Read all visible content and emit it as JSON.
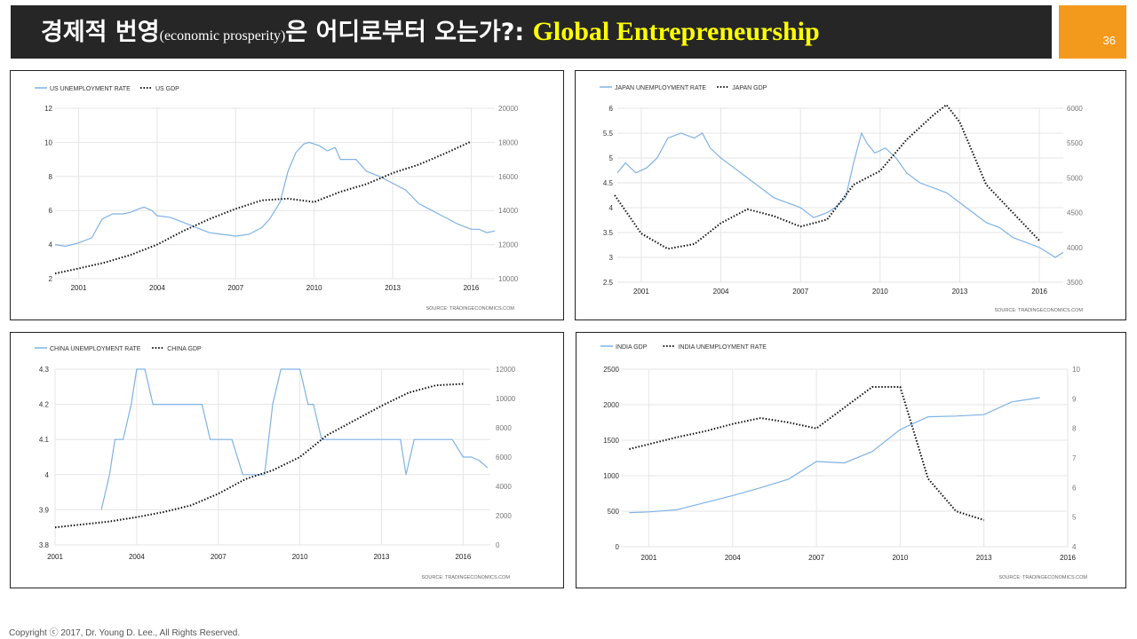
{
  "header": {
    "title_ko": "경제적 번영",
    "title_paren": "(economic prosperity)",
    "title_ko2": "은 어디로부터 오는가?",
    "title_sep": ": ",
    "title_en": "Global Entrepreneurship",
    "page_number": "36"
  },
  "footer": {
    "copyright": "Copyright ⓒ 2017, Dr. Young D. Lee., All Rights Reserved."
  },
  "colors": {
    "blue_series": "#7fb2e5",
    "black_series": "#111111",
    "title_bg": "#262626",
    "accent": "#f39a1c",
    "title_en": "#ffff00"
  },
  "chart_data": [
    {
      "type": "line",
      "source": "SOURCE: TRADINGECONOMICS.COM",
      "legend": [
        "US UNEMPLOYMENT RATE",
        "US GDP"
      ],
      "x_ticks": [
        "2001",
        "2004",
        "2007",
        "2010",
        "2013",
        "2016"
      ],
      "xlim": [
        2000.1,
        2016.9
      ],
      "left_axis": {
        "min": 2,
        "max": 12,
        "ticks": [
          "2",
          "4",
          "6",
          "8",
          "10",
          "12"
        ]
      },
      "right_axis": {
        "min": 10000,
        "max": 20000,
        "ticks": [
          "10000",
          "12000",
          "14000",
          "16000",
          "18000",
          "20000"
        ]
      },
      "series": [
        {
          "name": "US UNEMPLOYMENT RATE",
          "axis": "left",
          "style": "solid",
          "x": [
            2000.1,
            2000.5,
            2001.0,
            2001.5,
            2001.9,
            2002.3,
            2002.7,
            2003.0,
            2003.3,
            2003.5,
            2003.8,
            2004.0,
            2004.5,
            2005.0,
            2005.5,
            2006.0,
            2006.5,
            2007.0,
            2007.5,
            2008.0,
            2008.3,
            2008.7,
            2009.0,
            2009.3,
            2009.6,
            2009.8,
            2010.2,
            2010.5,
            2010.8,
            2011.0,
            2011.3,
            2011.6,
            2012.0,
            2012.5,
            2013.0,
            2013.5,
            2014.0,
            2014.5,
            2015.0,
            2015.5,
            2016.0,
            2016.3,
            2016.6,
            2016.9
          ],
          "values": [
            4.0,
            3.9,
            4.1,
            4.4,
            5.5,
            5.8,
            5.8,
            5.9,
            6.1,
            6.2,
            6.0,
            5.7,
            5.6,
            5.3,
            5.0,
            4.7,
            4.6,
            4.5,
            4.6,
            5.0,
            5.5,
            6.5,
            8.3,
            9.4,
            9.9,
            10.0,
            9.8,
            9.5,
            9.7,
            9.0,
            9.0,
            9.0,
            8.3,
            8.0,
            7.6,
            7.2,
            6.4,
            6.0,
            5.6,
            5.2,
            4.9,
            4.9,
            4.7,
            4.8
          ]
        },
        {
          "name": "US GDP",
          "axis": "right",
          "style": "dotted",
          "x": [
            2000.1,
            2001,
            2002,
            2003,
            2004,
            2005,
            2006,
            2007,
            2008,
            2009,
            2010,
            2011,
            2012,
            2013,
            2014,
            2015,
            2016
          ],
          "values": [
            10300,
            10600,
            10950,
            11400,
            12000,
            12800,
            13500,
            14100,
            14600,
            14700,
            14500,
            15100,
            15550,
            16200,
            16700,
            17350,
            18050
          ]
        }
      ]
    },
    {
      "type": "line",
      "source": "SOURCE: TRADINGECONOMICS.COM",
      "legend": [
        "JAPAN UNEMPLOYMENT RATE",
        "JAPAN GDP"
      ],
      "x_ticks": [
        "2001",
        "2004",
        "2007",
        "2010",
        "2013",
        "2016"
      ],
      "xlim": [
        2000.1,
        2016.9
      ],
      "left_axis": {
        "min": 2.5,
        "max": 6,
        "ticks": [
          "2.5",
          "3",
          "3.5",
          "4",
          "4.5",
          "5",
          "5.5",
          "6"
        ]
      },
      "right_axis": {
        "min": 3500,
        "max": 6000,
        "ticks": [
          "3500",
          "4000",
          "4500",
          "5000",
          "5500",
          "6000"
        ]
      },
      "series": [
        {
          "name": "JAPAN UNEMPLOYMENT RATE",
          "axis": "left",
          "style": "solid",
          "x": [
            2000.1,
            2000.4,
            2000.8,
            2001.2,
            2001.6,
            2002.0,
            2002.5,
            2003.0,
            2003.3,
            2003.6,
            2004.0,
            2004.5,
            2005.0,
            2005.5,
            2006.0,
            2006.5,
            2007.0,
            2007.5,
            2008.0,
            2008.3,
            2008.7,
            2009.0,
            2009.3,
            2009.5,
            2009.8,
            2010.2,
            2010.6,
            2011.0,
            2011.5,
            2012.0,
            2012.5,
            2013.0,
            2013.5,
            2014.0,
            2014.5,
            2015.0,
            2015.5,
            2016.0,
            2016.3,
            2016.6,
            2016.9
          ],
          "values": [
            4.7,
            4.9,
            4.7,
            4.8,
            5.0,
            5.4,
            5.5,
            5.4,
            5.5,
            5.2,
            5.0,
            4.8,
            4.6,
            4.4,
            4.2,
            4.1,
            4.0,
            3.8,
            3.9,
            4.0,
            4.2,
            4.9,
            5.5,
            5.3,
            5.1,
            5.2,
            5.0,
            4.7,
            4.5,
            4.4,
            4.3,
            4.1,
            3.9,
            3.7,
            3.6,
            3.4,
            3.3,
            3.2,
            3.1,
            3.0,
            3.1
          ]
        },
        {
          "name": "JAPAN GDP",
          "axis": "right",
          "style": "dotted",
          "x": [
            2000.0,
            2001,
            2002,
            2003,
            2004,
            2005,
            2006,
            2007,
            2008,
            2009,
            2010,
            2011,
            2012,
            2012.5,
            2013,
            2014,
            2015,
            2016
          ],
          "values": [
            4750,
            4200,
            3980,
            4050,
            4350,
            4550,
            4450,
            4300,
            4400,
            4900,
            5100,
            5550,
            5900,
            6050,
            5800,
            4900,
            4500,
            4100
          ]
        }
      ]
    },
    {
      "type": "line",
      "source": "SOURCE: TRADINGECONOMICS.COM",
      "legend": [
        "CHINA UNEMPLOYMENT RATE",
        "CHINA GDP"
      ],
      "x_ticks": [
        "2001",
        "2004",
        "2007",
        "2010",
        "2013",
        "2016"
      ],
      "xlim": [
        2001,
        2017
      ],
      "left_axis": {
        "min": 3.8,
        "max": 4.3,
        "ticks": [
          "3.8",
          "3.9",
          "4",
          "4.1",
          "4.2",
          "4.3"
        ]
      },
      "right_axis": {
        "min": 0,
        "max": 12000,
        "ticks": [
          "0",
          "2000",
          "4000",
          "6000",
          "8000",
          "10000",
          "12000"
        ]
      },
      "series": [
        {
          "name": "CHINA UNEMPLOYMENT RATE",
          "axis": "left",
          "style": "solid",
          "x": [
            2002.7,
            2003.0,
            2003.2,
            2003.5,
            2003.8,
            2004.0,
            2004.3,
            2004.6,
            2004.8,
            2005.2,
            2005.6,
            2006.0,
            2006.4,
            2006.7,
            2007.0,
            2007.3,
            2007.5,
            2007.9,
            2008.3,
            2008.7,
            2009.0,
            2009.3,
            2009.6,
            2010.0,
            2010.3,
            2010.5,
            2010.8,
            2011.2,
            2011.6,
            2012.0,
            2012.5,
            2013.0,
            2013.5,
            2013.7,
            2013.9,
            2014.2,
            2014.6,
            2015.0,
            2015.4,
            2015.6,
            2016.0,
            2016.3,
            2016.6,
            2016.9
          ],
          "values": [
            3.9,
            4.0,
            4.1,
            4.1,
            4.2,
            4.3,
            4.3,
            4.2,
            4.2,
            4.2,
            4.2,
            4.2,
            4.2,
            4.1,
            4.1,
            4.1,
            4.1,
            4.0,
            4.0,
            4.0,
            4.2,
            4.3,
            4.3,
            4.3,
            4.2,
            4.2,
            4.1,
            4.1,
            4.1,
            4.1,
            4.1,
            4.1,
            4.1,
            4.1,
            4.0,
            4.1,
            4.1,
            4.1,
            4.1,
            4.1,
            4.05,
            4.05,
            4.04,
            4.02
          ]
        },
        {
          "name": "CHINA GDP",
          "axis": "right",
          "style": "dotted",
          "x": [
            2001,
            2002,
            2003,
            2004,
            2005,
            2006,
            2007,
            2008,
            2009,
            2010,
            2011,
            2012,
            2013,
            2014,
            2015,
            2016
          ],
          "values": [
            1200,
            1400,
            1600,
            1900,
            2250,
            2700,
            3500,
            4500,
            5100,
            6000,
            7500,
            8500,
            9500,
            10400,
            10900,
            11000
          ]
        }
      ]
    },
    {
      "type": "line",
      "source": "SOURCE: TRADINGECONOMICS.COM",
      "legend": [
        "INDIA GDP",
        "INDIA UNEMPLOYMENT RATE"
      ],
      "x_ticks": [
        "2001",
        "2004",
        "2007",
        "2010",
        "2013",
        "2016"
      ],
      "xlim": [
        2000,
        2016
      ],
      "left_axis": {
        "min": 0,
        "max": 2500,
        "ticks": [
          "0",
          "500",
          "1000",
          "1500",
          "2000",
          "2500"
        ]
      },
      "right_axis": {
        "min": 4,
        "max": 10,
        "ticks": [
          "4",
          "5",
          "6",
          "7",
          "8",
          "9",
          "10"
        ]
      },
      "series": [
        {
          "name": "INDIA GDP",
          "axis": "left",
          "style": "solid",
          "x": [
            2000.3,
            2001,
            2002,
            2003,
            2004,
            2005,
            2006,
            2007,
            2008,
            2009,
            2010,
            2011,
            2012,
            2013,
            2014,
            2015
          ],
          "values": [
            480,
            490,
            520,
            620,
            720,
            830,
            950,
            1200,
            1180,
            1340,
            1650,
            1830,
            1840,
            1860,
            2040,
            2100
          ]
        },
        {
          "name": "INDIA UNEMPLOYMENT RATE",
          "axis": "right",
          "style": "dotted",
          "x": [
            2000.3,
            2002,
            2003,
            2004,
            2005,
            2006,
            2007,
            2008,
            2009,
            2010,
            2011,
            2012,
            2013
          ],
          "values": [
            7.3,
            7.7,
            7.9,
            8.15,
            8.35,
            8.2,
            8.0,
            8.7,
            9.4,
            9.4,
            6.3,
            5.2,
            4.9
          ]
        }
      ]
    }
  ]
}
